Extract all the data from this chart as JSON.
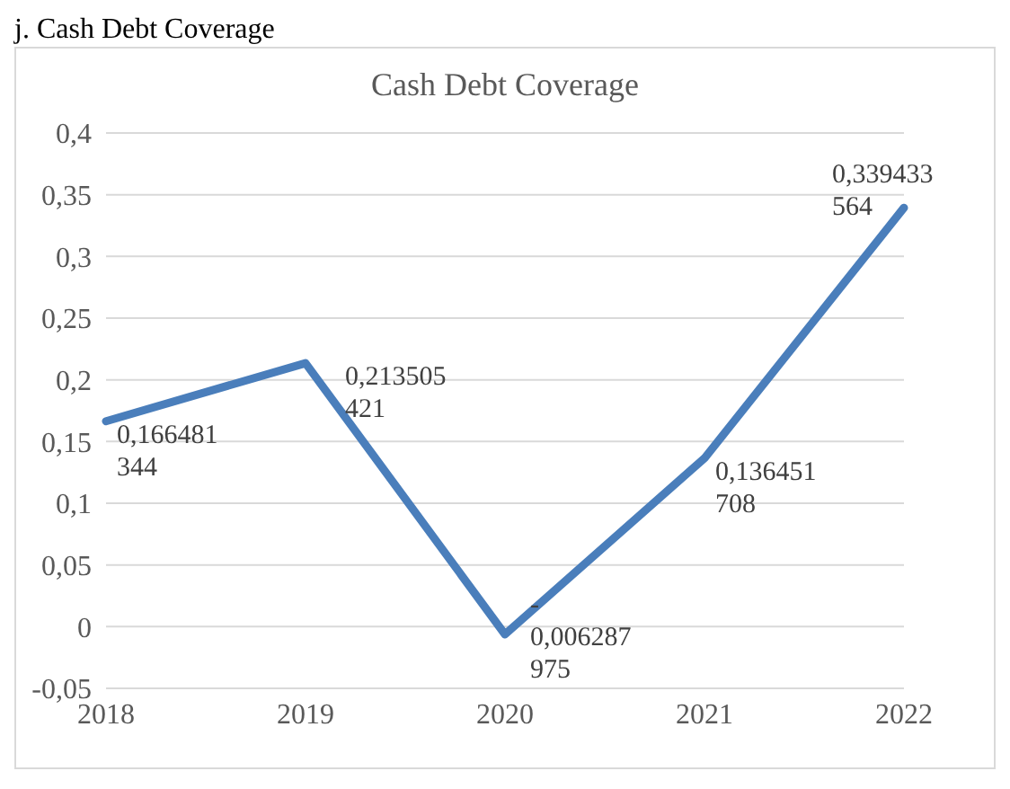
{
  "chart_data": {
    "type": "line",
    "title": "Cash Debt Coverage",
    "annotations": [
      "j. Cash Debt Coverage"
    ],
    "categories": [
      "2018",
      "2019",
      "2020",
      "2021",
      "2022"
    ],
    "series": [
      {
        "color": "#4a7ebb",
        "values": [
          0.166481344,
          0.213505421,
          -0.006287975,
          0.136451708,
          0.339433564
        ],
        "value_labels": [
          "0,166481344",
          "0,213505421",
          "-0,006287975",
          "0,136451708",
          "0,339433564"
        ]
      }
    ],
    "ylim": [
      -0.05,
      0.4
    ],
    "yticks": [
      {
        "value": -0.05,
        "label": "-0,05"
      },
      {
        "value": 0,
        "label": "0"
      },
      {
        "value": 0.05,
        "label": "0,05"
      },
      {
        "value": 0.1,
        "label": "0,1"
      },
      {
        "value": 0.15,
        "label": "0,15"
      },
      {
        "value": 0.2,
        "label": "0,2"
      },
      {
        "value": 0.25,
        "label": "0,25"
      },
      {
        "value": 0.3,
        "label": "0,3"
      },
      {
        "value": 0.35,
        "label": "0,35"
      },
      {
        "value": 0.4,
        "label": "0,4"
      }
    ],
    "grid": "y",
    "legend": false,
    "marker": "none",
    "line_style": "solid"
  }
}
